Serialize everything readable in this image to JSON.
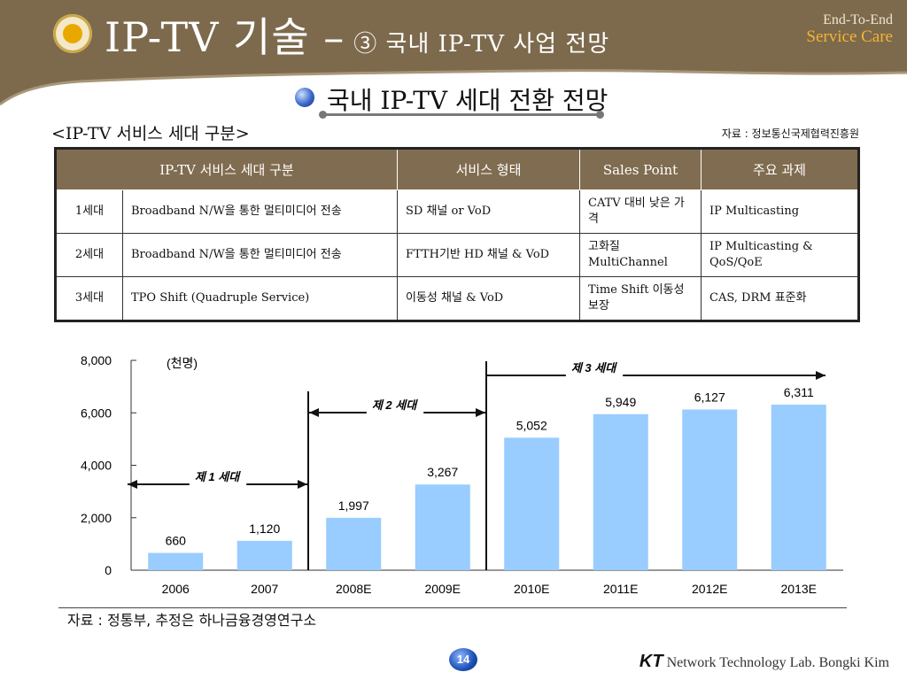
{
  "header": {
    "title": "IP-TV 기술 –",
    "subtitle": "③ 국내 IP-TV 사업 전망",
    "brand_line1": "End-To-End",
    "brand_line2": "Service Care"
  },
  "section": {
    "heading": "국내 IP-TV 세대 전환 전망"
  },
  "table_block": {
    "caption": "<IP-TV 서비스 세대 구분>",
    "source": "자료 : 정보통신국제협력진흥원",
    "headers": [
      "IP-TV 서비스 세대 구분",
      "서비스 형태",
      "Sales Point",
      "주요 과제"
    ],
    "rows": [
      [
        "1세대",
        "Broadband N/W을 통한 멀티미디어 전송",
        "SD 채널 or VoD",
        "CATV 대비 낮은 가격",
        "IP Multicasting"
      ],
      [
        "2세대",
        "Broadband N/W을 통한 멀티미디어 전송",
        "FTTH기반 HD 채널 & VoD",
        "고화질 MultiChannel",
        "IP Multicasting & QoS/QoE"
      ],
      [
        "3세대",
        "TPO Shift (Quadruple Service)",
        "이동성 채널 & VoD",
        "Time Shift 이동성 보장",
        "CAS, DRM 표준화"
      ]
    ]
  },
  "chart_data": {
    "type": "bar",
    "categories": [
      "2006",
      "2007",
      "2008E",
      "2009E",
      "2010E",
      "2011E",
      "2012E",
      "2013E"
    ],
    "values": [
      660,
      1120,
      1997,
      3267,
      5052,
      5949,
      6127,
      6311
    ],
    "value_labels": [
      "660",
      "1,120",
      "1,997",
      "3,267",
      "5,052",
      "5,949",
      "6,127",
      "6,311"
    ],
    "unit": "(천명)",
    "ylim": [
      0,
      8000
    ],
    "yticks": [
      "0",
      "2,000",
      "4,000",
      "6,000",
      "8,000"
    ],
    "ytick_values": [
      0,
      2000,
      4000,
      6000,
      8000
    ],
    "bar_color": "#99ccff",
    "annotations": [
      "제 1 세대",
      "제 2 세대",
      "제 3 세대"
    ],
    "source": "자료 : 정통부, 추정은 하나금융경영연구소"
  },
  "footer": {
    "page_number": "14",
    "company_logo": "KT",
    "company_text": "Network Technology Lab. Bongki Kim"
  },
  "colors": {
    "header_bg": "#7d6a4d",
    "header_accent": "#f2b530",
    "table_header_bg": "#806c50",
    "bar": "#99ccff"
  }
}
